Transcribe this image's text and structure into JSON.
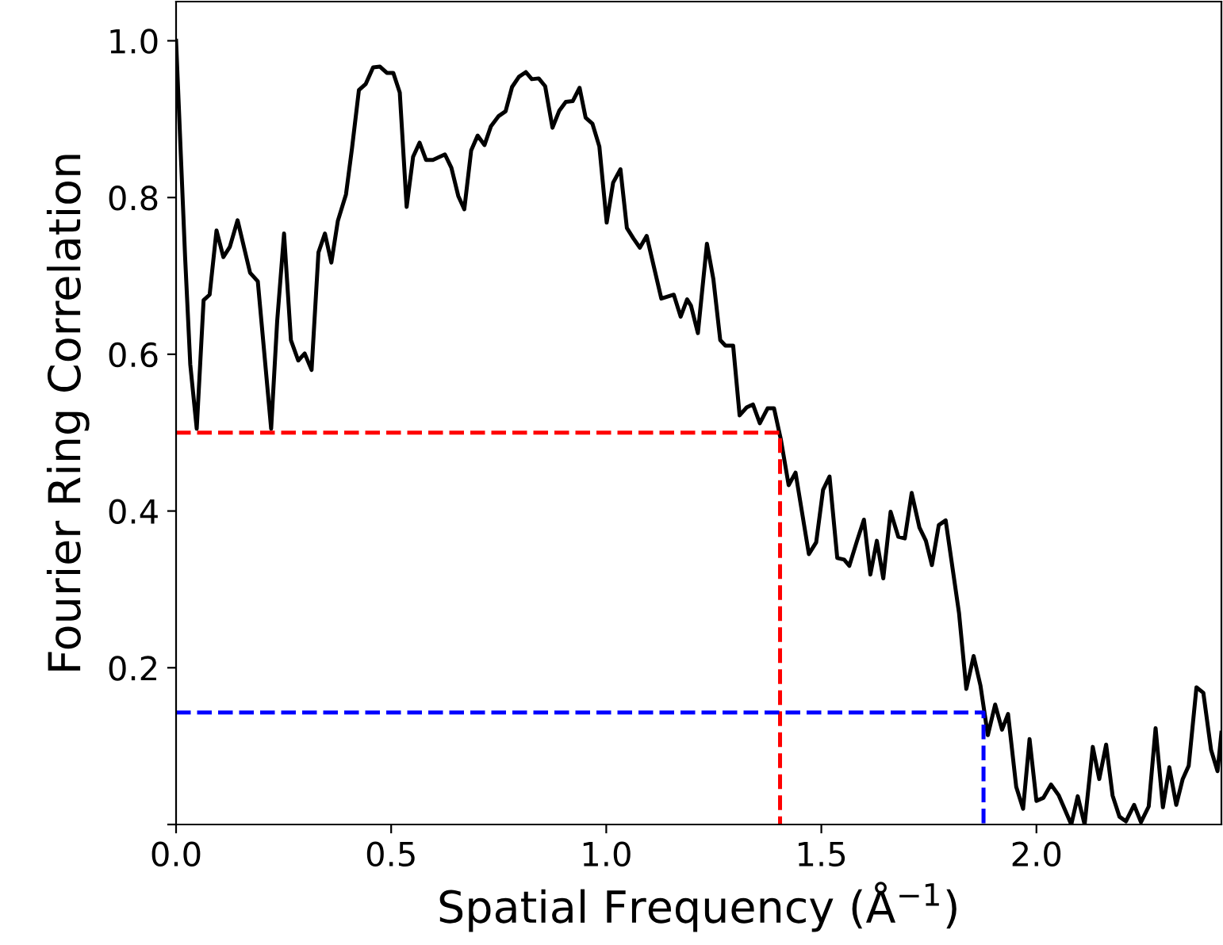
{
  "chart_data": {
    "type": "line",
    "xlabel": "Spatial Frequency (Å$^{−1}$)",
    "ylabel": "Fourier Ring Correlation",
    "xlim": [
      0,
      2.43
    ],
    "ylim": [
      0,
      1.05
    ],
    "xticks": [
      {
        "value": 0,
        "label": "0.0"
      },
      0.5,
      {
        "value": 1,
        "label": "1.0"
      },
      1.5,
      {
        "value": 2,
        "label": "2.0"
      }
    ],
    "yticks": [
      {
        "value": 0,
        "label": null
      },
      0.2,
      0.4,
      0.6,
      0.8,
      {
        "value": 1,
        "label": "1.0"
      }
    ],
    "grid": false,
    "series": [
      {
        "color": "#000000",
        "line_style": "solid",
        "x": [
          0,
          0.021,
          0.033,
          0.048,
          0.064,
          0.078,
          0.094,
          0.11,
          0.125,
          0.143,
          0.172,
          0.19,
          0.221,
          0.235,
          0.251,
          0.267,
          0.284,
          0.299,
          0.315,
          0.331,
          0.346,
          0.361,
          0.376,
          0.395,
          0.409,
          0.425,
          0.441,
          0.458,
          0.474,
          0.49,
          0.505,
          0.52,
          0.536,
          0.551,
          0.566,
          0.581,
          0.597,
          0.625,
          0.64,
          0.656,
          0.67,
          0.686,
          0.701,
          0.717,
          0.732,
          0.75,
          0.766,
          0.781,
          0.797,
          0.813,
          0.827,
          0.843,
          0.858,
          0.875,
          0.891,
          0.906,
          0.922,
          0.938,
          0.952,
          0.968,
          0.984,
          1.001,
          1.016,
          1.033,
          1.048,
          1.063,
          1.078,
          1.094,
          1.128,
          1.157,
          1.173,
          1.188,
          1.197,
          1.213,
          1.234,
          1.249,
          1.265,
          1.277,
          1.295,
          1.31,
          1.326,
          1.341,
          1.357,
          1.375,
          1.39,
          1.406,
          1.424,
          1.44,
          1.471,
          1.488,
          1.504,
          1.519,
          1.537,
          1.553,
          1.565,
          1.583,
          1.599,
          1.614,
          1.629,
          1.644,
          1.661,
          1.679,
          1.694,
          1.71,
          1.728,
          1.743,
          1.757,
          1.773,
          1.789,
          1.82,
          1.837,
          1.854,
          1.87,
          1.887,
          1.904,
          1.92,
          1.934,
          1.953,
          1.969,
          1.984,
          2.0,
          2.016,
          2.034,
          2.052,
          2.081,
          2.096,
          2.112,
          2.131,
          2.146,
          2.162,
          2.177,
          2.193,
          2.208,
          2.227,
          2.243,
          2.261,
          2.277,
          2.294,
          2.309,
          2.325,
          2.34,
          2.354,
          2.372,
          2.388,
          2.406,
          2.421,
          2.43
        ],
        "values": [
          1.0,
          0.724,
          0.587,
          0.505,
          0.669,
          0.676,
          0.758,
          0.724,
          0.737,
          0.771,
          0.704,
          0.693,
          0.505,
          0.642,
          0.754,
          0.618,
          0.592,
          0.601,
          0.58,
          0.73,
          0.754,
          0.717,
          0.77,
          0.804,
          0.863,
          0.937,
          0.945,
          0.966,
          0.967,
          0.959,
          0.959,
          0.934,
          0.788,
          0.852,
          0.87,
          0.848,
          0.848,
          0.855,
          0.838,
          0.802,
          0.785,
          0.86,
          0.879,
          0.867,
          0.891,
          0.904,
          0.91,
          0.941,
          0.954,
          0.96,
          0.951,
          0.952,
          0.942,
          0.889,
          0.911,
          0.922,
          0.923,
          0.94,
          0.902,
          0.894,
          0.865,
          0.768,
          0.819,
          0.836,
          0.761,
          0.748,
          0.736,
          0.751,
          0.671,
          0.676,
          0.648,
          0.67,
          0.662,
          0.627,
          0.741,
          0.696,
          0.618,
          0.611,
          0.611,
          0.522,
          0.532,
          0.536,
          0.512,
          0.531,
          0.531,
          0.491,
          0.433,
          0.449,
          0.345,
          0.36,
          0.427,
          0.444,
          0.34,
          0.338,
          0.33,
          0.362,
          0.389,
          0.319,
          0.362,
          0.314,
          0.399,
          0.367,
          0.365,
          0.423,
          0.379,
          0.362,
          0.331,
          0.382,
          0.388,
          0.27,
          0.173,
          0.215,
          0.177,
          0.114,
          0.153,
          0.121,
          0.141,
          0.048,
          0.02,
          0.109,
          0.03,
          0.034,
          0.051,
          0.037,
          0.0,
          0.036,
          0.0,
          0.099,
          0.058,
          0.102,
          0.037,
          0.01,
          0.004,
          0.025,
          0.003,
          0.023,
          0.123,
          0.022,
          0.073,
          0.025,
          0.058,
          0.075,
          0.175,
          0.168,
          0.095,
          0.068,
          0.117
        ]
      },
      {
        "color": "#ff0000",
        "line_style": "dashed",
        "x": [
          0,
          1.404,
          1.404
        ],
        "values": [
          0.5,
          0.5,
          0
        ]
      },
      {
        "color": "#0000ff",
        "line_style": "dashed",
        "x": [
          0,
          1.877,
          1.877
        ],
        "values": [
          0.143,
          0.143,
          0
        ]
      }
    ]
  }
}
